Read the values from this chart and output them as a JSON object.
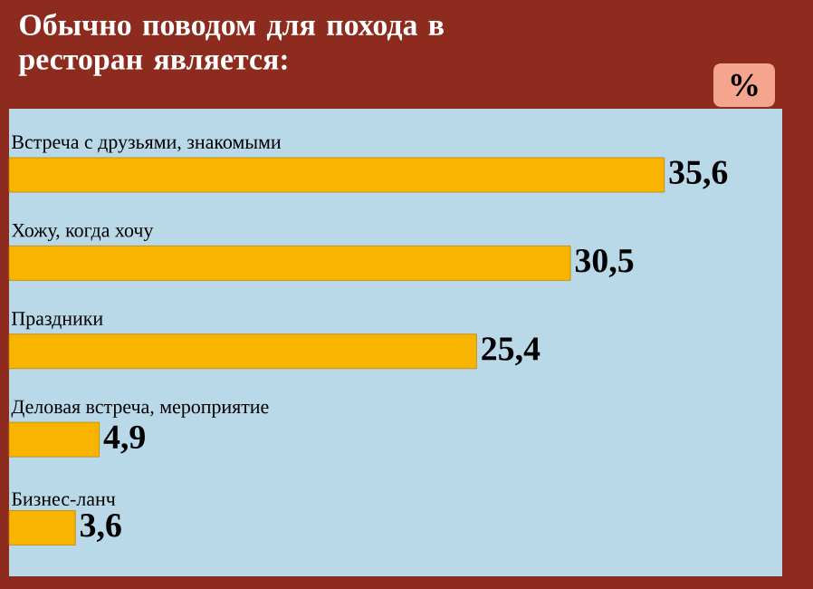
{
  "chart_data": {
    "type": "bar",
    "orientation": "horizontal",
    "title": "Обычно поводом для похода в ресторан является:",
    "xlabel": "%",
    "categories": [
      "Встреча с друзьями, знакомыми",
      "Хожу, когда хочу",
      "Праздники",
      "Деловая встреча, мероприятие",
      "Бизнес-ланч"
    ],
    "values": [
      35.6,
      30.5,
      25.4,
      4.9,
      3.6
    ],
    "value_labels": [
      "35,6",
      "30,5",
      "25,4",
      "4,9",
      "3,6"
    ],
    "color": "#f9b400"
  }
}
